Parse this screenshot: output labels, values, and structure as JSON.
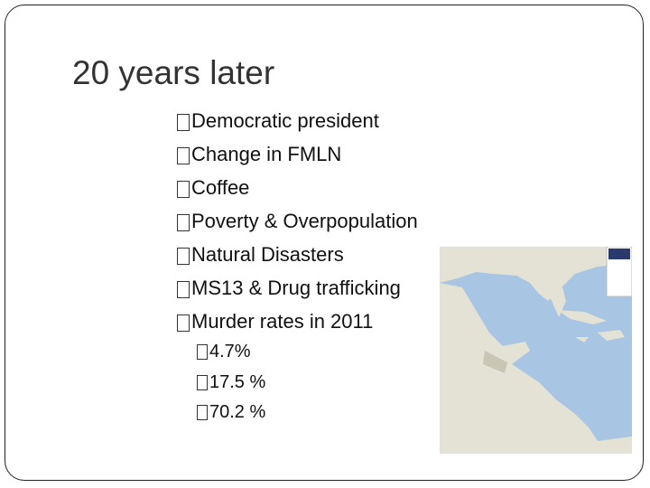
{
  "title": "20 years later",
  "bullets": [
    "Democratic president",
    "Change in FMLN",
    "Coffee",
    "Poverty & Overpopulation",
    "Natural Disasters",
    "MS13 & Drug trafficking",
    "Murder rates in 2011"
  ],
  "sub_bullets": [
    "4.7%",
    "17.5 %",
    "70.2 %"
  ]
}
